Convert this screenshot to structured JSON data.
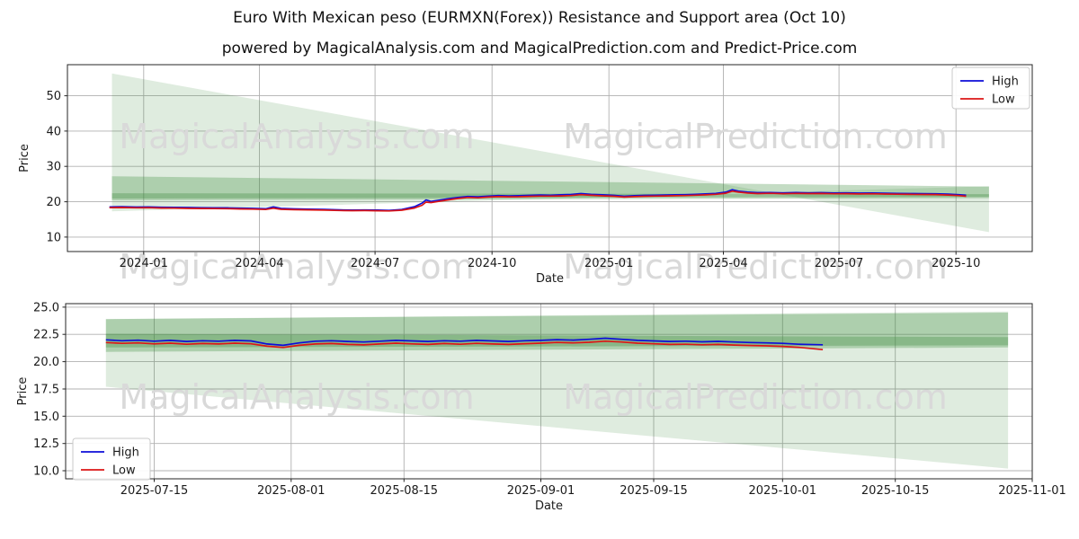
{
  "page": {
    "title": "Euro With Mexican peso (EURMXN(Forex)) Resistance and Support area (Oct 10)",
    "subtitle": "powered by MagicalAnalysis.com and MagicalPrediction.com and Predict-Price.com"
  },
  "watermarks": {
    "left": "MagicalAnalysis.com",
    "right": "MagicalPrediction.com"
  },
  "colors": {
    "high": "#0d0dd8",
    "low": "#dc1616",
    "band": "#3a8a3a",
    "grid": "#b0b0b0",
    "axis": "#262626",
    "tick_text": "#1a1a1a",
    "watermark": "#d9d9d9",
    "legend_border": "#c9c9c9"
  },
  "chart_data": [
    {
      "type": "line",
      "xlabel": "Date",
      "ylabel": "Price",
      "xlim": [
        "2023-11-02",
        "2025-11-30"
      ],
      "ylim": [
        5.9,
        58.8
      ],
      "grid": true,
      "xticks": [
        {
          "v": "2024-01-01",
          "label": "2024-01"
        },
        {
          "v": "2024-04-01",
          "label": "2024-04"
        },
        {
          "v": "2024-07-01",
          "label": "2024-07"
        },
        {
          "v": "2024-10-01",
          "label": "2024-10"
        },
        {
          "v": "2025-01-01",
          "label": "2025-01"
        },
        {
          "v": "2025-04-01",
          "label": "2025-04"
        },
        {
          "v": "2025-07-01",
          "label": "2025-07"
        },
        {
          "v": "2025-10-01",
          "label": "2025-10"
        }
      ],
      "yticks": [
        {
          "v": 10,
          "label": "10"
        },
        {
          "v": 20,
          "label": "20"
        },
        {
          "v": 30,
          "label": "30"
        },
        {
          "v": 40,
          "label": "40"
        },
        {
          "v": 50,
          "label": "50"
        }
      ],
      "legend": {
        "position": "top-right"
      },
      "series": [
        {
          "name": "High",
          "color": "high"
        },
        {
          "name": "Low",
          "color": "low"
        }
      ],
      "bands": [
        {
          "name": "outer-resistance-support-fan",
          "opacity": 0.16,
          "points": [
            [
              "2023-12-07",
              56.3
            ],
            [
              "2025-10-27",
              11.4
            ],
            [
              "2025-10-27",
              24.4
            ],
            [
              "2023-12-07",
              17.3
            ]
          ]
        },
        {
          "name": "mid-resistance-support-area",
          "opacity": 0.3,
          "points": [
            [
              "2023-12-07",
              27.2
            ],
            [
              "2025-10-27",
              24.3
            ],
            [
              "2025-10-27",
              21.0
            ],
            [
              "2023-12-07",
              20.4
            ]
          ]
        },
        {
          "name": "core-resistance-support-area",
          "opacity": 0.32,
          "points": [
            [
              "2023-12-07",
              22.4
            ],
            [
              "2025-10-27",
              22.15
            ],
            [
              "2025-10-27",
              21.4
            ],
            [
              "2023-12-07",
              20.9
            ]
          ]
        }
      ],
      "points": [
        [
          "2023-12-05",
          18.55,
          18.3
        ],
        [
          "2023-12-15",
          18.6,
          18.35
        ],
        [
          "2023-12-26",
          18.5,
          18.28
        ],
        [
          "2024-01-05",
          18.52,
          18.3
        ],
        [
          "2024-01-15",
          18.45,
          18.22
        ],
        [
          "2024-01-25",
          18.4,
          18.18
        ],
        [
          "2024-02-05",
          18.35,
          18.12
        ],
        [
          "2024-02-15",
          18.3,
          18.08
        ],
        [
          "2024-02-25",
          18.28,
          18.05
        ],
        [
          "2024-03-07",
          18.25,
          18.02
        ],
        [
          "2024-03-17",
          18.18,
          17.96
        ],
        [
          "2024-03-27",
          18.1,
          17.9
        ],
        [
          "2024-04-06",
          18.0,
          17.8
        ],
        [
          "2024-04-12",
          18.55,
          18.15
        ],
        [
          "2024-04-18",
          18.1,
          17.85
        ],
        [
          "2024-04-28",
          17.98,
          17.76
        ],
        [
          "2024-05-10",
          17.9,
          17.7
        ],
        [
          "2024-05-22",
          17.82,
          17.62
        ],
        [
          "2024-06-03",
          17.7,
          17.52
        ],
        [
          "2024-06-13",
          17.62,
          17.46
        ],
        [
          "2024-06-23",
          17.68,
          17.5
        ],
        [
          "2024-07-03",
          17.62,
          17.45
        ],
        [
          "2024-07-12",
          17.55,
          17.4
        ],
        [
          "2024-07-22",
          17.8,
          17.6
        ],
        [
          "2024-08-01",
          18.6,
          18.2
        ],
        [
          "2024-08-07",
          19.6,
          19.0
        ],
        [
          "2024-08-10",
          20.5,
          19.9
        ],
        [
          "2024-08-14",
          20.1,
          19.75
        ],
        [
          "2024-08-20",
          20.4,
          20.1
        ],
        [
          "2024-08-27",
          20.8,
          20.5
        ],
        [
          "2024-09-04",
          21.2,
          20.9
        ],
        [
          "2024-09-12",
          21.5,
          21.2
        ],
        [
          "2024-09-20",
          21.4,
          21.1
        ],
        [
          "2024-09-28",
          21.6,
          21.3
        ],
        [
          "2024-10-06",
          21.75,
          21.45
        ],
        [
          "2024-10-14",
          21.65,
          21.4
        ],
        [
          "2024-10-22",
          21.7,
          21.42
        ],
        [
          "2024-10-30",
          21.8,
          21.52
        ],
        [
          "2024-11-08",
          21.9,
          21.6
        ],
        [
          "2024-11-16",
          21.85,
          21.58
        ],
        [
          "2024-11-24",
          21.95,
          21.65
        ],
        [
          "2024-12-02",
          22.05,
          21.75
        ],
        [
          "2024-12-10",
          22.3,
          22.0
        ],
        [
          "2024-12-18",
          22.1,
          21.82
        ],
        [
          "2024-12-27",
          21.95,
          21.68
        ],
        [
          "2025-01-05",
          21.8,
          21.55
        ],
        [
          "2025-01-13",
          21.55,
          21.32
        ],
        [
          "2025-01-21",
          21.7,
          21.45
        ],
        [
          "2025-01-29",
          21.8,
          21.55
        ],
        [
          "2025-02-06",
          21.85,
          21.6
        ],
        [
          "2025-02-14",
          21.9,
          21.65
        ],
        [
          "2025-02-22",
          21.95,
          21.7
        ],
        [
          "2025-03-02",
          22.0,
          21.75
        ],
        [
          "2025-03-10",
          22.1,
          21.85
        ],
        [
          "2025-03-18",
          22.2,
          21.95
        ],
        [
          "2025-03-26",
          22.35,
          22.1
        ],
        [
          "2025-04-03",
          22.7,
          22.4
        ],
        [
          "2025-04-08",
          23.4,
          23.0
        ],
        [
          "2025-04-13",
          23.0,
          22.7
        ],
        [
          "2025-04-20",
          22.7,
          22.45
        ],
        [
          "2025-04-28",
          22.55,
          22.3
        ],
        [
          "2025-05-08",
          22.6,
          22.38
        ],
        [
          "2025-05-18",
          22.5,
          22.28
        ],
        [
          "2025-05-28",
          22.58,
          22.35
        ],
        [
          "2025-06-07",
          22.52,
          22.3
        ],
        [
          "2025-06-17",
          22.55,
          22.33
        ],
        [
          "2025-06-27",
          22.48,
          22.26
        ],
        [
          "2025-07-07",
          22.5,
          22.28
        ],
        [
          "2025-07-17",
          22.42,
          22.2
        ],
        [
          "2025-07-27",
          22.48,
          22.26
        ],
        [
          "2025-08-06",
          22.4,
          22.18
        ],
        [
          "2025-08-16",
          22.35,
          22.12
        ],
        [
          "2025-08-26",
          22.3,
          22.08
        ],
        [
          "2025-09-05",
          22.28,
          22.05
        ],
        [
          "2025-09-15",
          22.25,
          22.02
        ],
        [
          "2025-09-25",
          22.15,
          21.9
        ],
        [
          "2025-10-03",
          22.0,
          21.75
        ],
        [
          "2025-10-09",
          21.85,
          21.55
        ]
      ]
    },
    {
      "type": "line",
      "xlabel": "Date",
      "ylabel": "Price",
      "xlim": [
        "2025-07-04",
        "2025-11-01"
      ],
      "ylim": [
        9.26,
        25.32
      ],
      "grid": true,
      "xticks": [
        {
          "v": "2025-07-15",
          "label": "2025-07-15"
        },
        {
          "v": "2025-08-01",
          "label": "2025-08-01"
        },
        {
          "v": "2025-08-15",
          "label": "2025-08-15"
        },
        {
          "v": "2025-09-01",
          "label": "2025-09-01"
        },
        {
          "v": "2025-09-15",
          "label": "2025-09-15"
        },
        {
          "v": "2025-10-01",
          "label": "2025-10-01"
        },
        {
          "v": "2025-10-15",
          "label": "2025-10-15"
        },
        {
          "v": "2025-11-01",
          "label": "2025-11-01"
        }
      ],
      "yticks": [
        {
          "v": 10.0,
          "label": "10.0"
        },
        {
          "v": 12.5,
          "label": "12.5"
        },
        {
          "v": 15.0,
          "label": "15.0"
        },
        {
          "v": 17.5,
          "label": "17.5"
        },
        {
          "v": 20.0,
          "label": "20.0"
        },
        {
          "v": 22.5,
          "label": "22.5"
        },
        {
          "v": 25.0,
          "label": "25.0"
        }
      ],
      "legend": {
        "position": "bottom-left"
      },
      "series": [
        {
          "name": "High",
          "color": "high"
        },
        {
          "name": "Low",
          "color": "low"
        }
      ],
      "bands": [
        {
          "name": "outer-resistance-support-fan",
          "opacity": 0.16,
          "points": [
            [
              "2025-07-09",
              23.9
            ],
            [
              "2025-10-29",
              24.6
            ],
            [
              "2025-10-29",
              10.2
            ],
            [
              "2025-07-09",
              17.7
            ]
          ]
        },
        {
          "name": "mid-resistance-support-area",
          "opacity": 0.3,
          "points": [
            [
              "2025-07-09",
              23.9
            ],
            [
              "2025-10-29",
              24.5
            ],
            [
              "2025-10-29",
              21.3
            ],
            [
              "2025-07-09",
              20.9
            ]
          ]
        },
        {
          "name": "core-resistance-support-area",
          "opacity": 0.32,
          "points": [
            [
              "2025-07-09",
              22.55
            ],
            [
              "2025-10-29",
              22.25
            ],
            [
              "2025-10-29",
              21.5
            ],
            [
              "2025-07-09",
              21.3
            ]
          ]
        }
      ],
      "points": [
        [
          "2025-07-09",
          22.0,
          21.75
        ],
        [
          "2025-07-11",
          21.92,
          21.68
        ],
        [
          "2025-07-13",
          21.97,
          21.72
        ],
        [
          "2025-07-15",
          21.88,
          21.63
        ],
        [
          "2025-07-17",
          21.95,
          21.7
        ],
        [
          "2025-07-19",
          21.85,
          21.6
        ],
        [
          "2025-07-21",
          21.92,
          21.66
        ],
        [
          "2025-07-23",
          21.88,
          21.62
        ],
        [
          "2025-07-25",
          21.95,
          21.7
        ],
        [
          "2025-07-27",
          21.9,
          21.64
        ],
        [
          "2025-07-29",
          21.62,
          21.42
        ],
        [
          "2025-07-31",
          21.5,
          21.3
        ],
        [
          "2025-08-02",
          21.72,
          21.5
        ],
        [
          "2025-08-04",
          21.88,
          21.62
        ],
        [
          "2025-08-06",
          21.92,
          21.66
        ],
        [
          "2025-08-08",
          21.85,
          21.58
        ],
        [
          "2025-08-10",
          21.8,
          21.54
        ],
        [
          "2025-08-12",
          21.88,
          21.62
        ],
        [
          "2025-08-14",
          21.95,
          21.7
        ],
        [
          "2025-08-16",
          21.9,
          21.63
        ],
        [
          "2025-08-18",
          21.85,
          21.58
        ],
        [
          "2025-08-20",
          21.92,
          21.66
        ],
        [
          "2025-08-22",
          21.88,
          21.6
        ],
        [
          "2025-08-24",
          21.95,
          21.68
        ],
        [
          "2025-08-26",
          21.9,
          21.62
        ],
        [
          "2025-08-28",
          21.85,
          21.58
        ],
        [
          "2025-08-30",
          21.92,
          21.65
        ],
        [
          "2025-09-01",
          21.95,
          21.7
        ],
        [
          "2025-09-03",
          22.02,
          21.76
        ],
        [
          "2025-09-05",
          21.98,
          21.72
        ],
        [
          "2025-09-07",
          22.05,
          21.78
        ],
        [
          "2025-09-09",
          22.15,
          21.88
        ],
        [
          "2025-09-11",
          22.05,
          21.8
        ],
        [
          "2025-09-13",
          21.95,
          21.7
        ],
        [
          "2025-09-15",
          21.9,
          21.64
        ],
        [
          "2025-09-17",
          21.85,
          21.58
        ],
        [
          "2025-09-19",
          21.88,
          21.6
        ],
        [
          "2025-09-21",
          21.82,
          21.55
        ],
        [
          "2025-09-23",
          21.86,
          21.58
        ],
        [
          "2025-09-25",
          21.8,
          21.52
        ],
        [
          "2025-09-27",
          21.75,
          21.48
        ],
        [
          "2025-09-29",
          21.72,
          21.45
        ],
        [
          "2025-10-01",
          21.68,
          21.4
        ],
        [
          "2025-10-03",
          21.6,
          21.32
        ],
        [
          "2025-10-06",
          21.55,
          21.1
        ]
      ]
    }
  ]
}
